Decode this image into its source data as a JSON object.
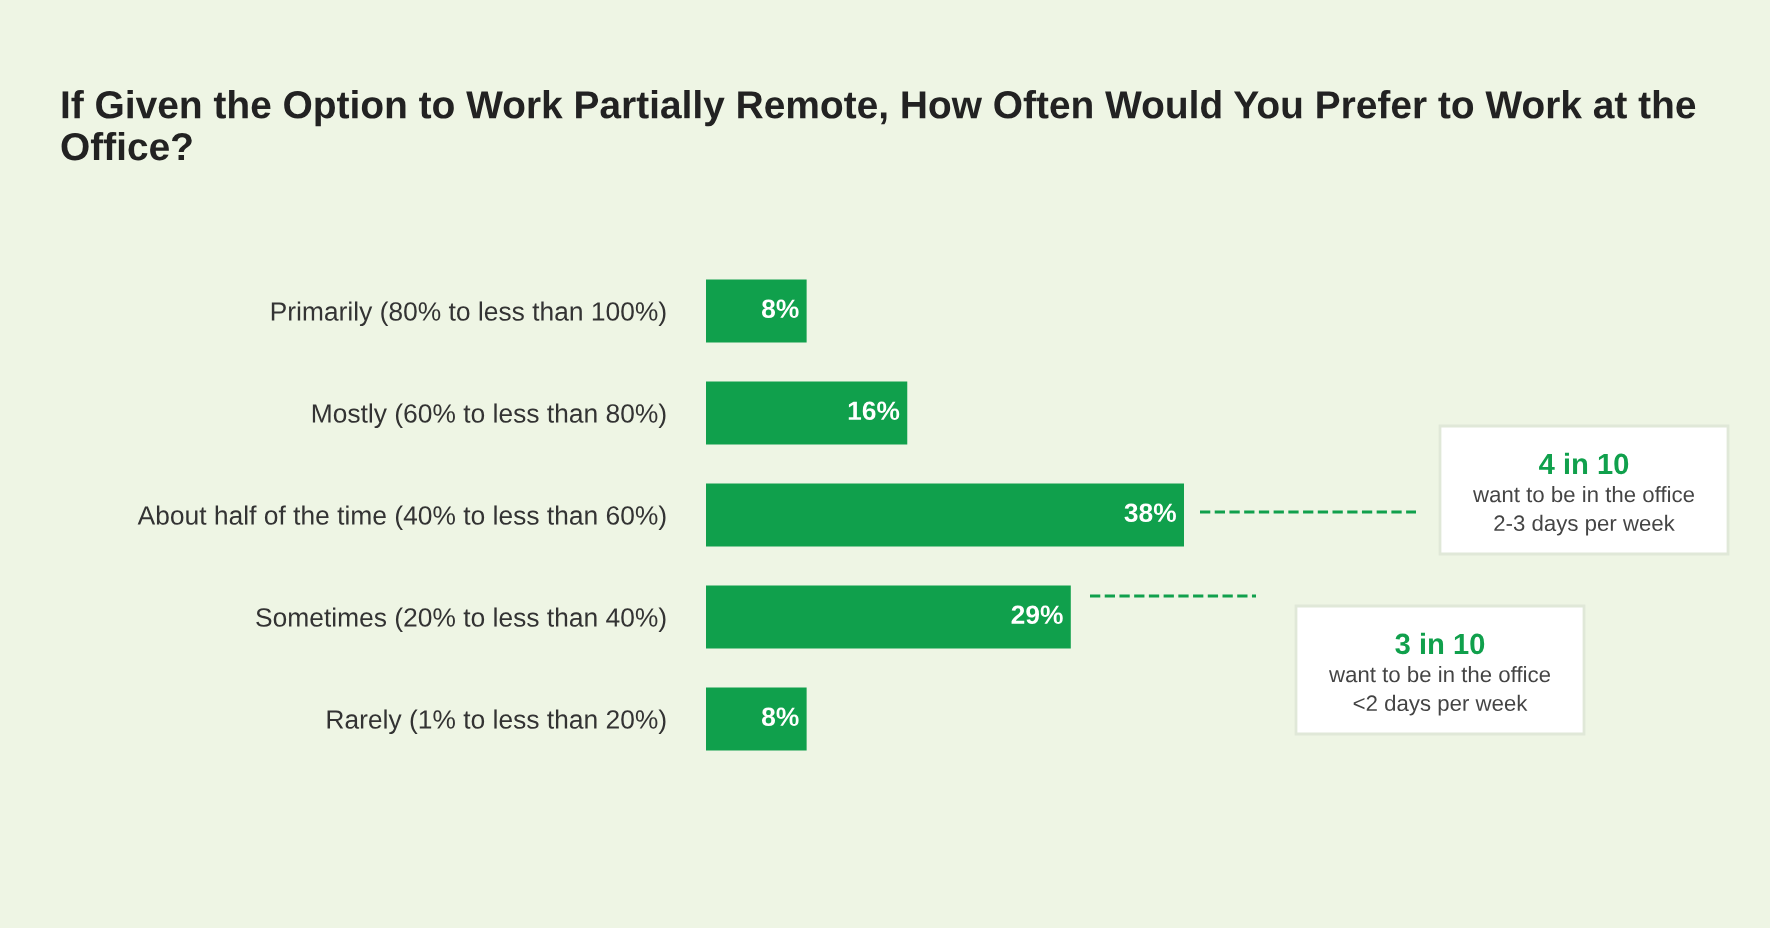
{
  "chart_data": {
    "type": "bar",
    "orientation": "horizontal",
    "title": "If Given the Option to Work Partially Remote, How Often Would You Prefer to Work at the Office?",
    "categories": [
      "Primarily (80% to less than 100%)",
      "Mostly (60% to less than 80%)",
      "About half of the time (40% to less than 60%)",
      "Sometimes (20% to less than 40%)",
      "Rarely (1% to less than 20%)"
    ],
    "values": [
      8,
      16,
      38,
      29,
      8
    ],
    "value_labels": [
      "8%",
      "16%",
      "38%",
      "29%",
      "8%"
    ],
    "color": "#10a04c",
    "annotations": [
      "4 in 10\nwant to be in the office\n2-3 days per week",
      "3 in 10\nwant to be in the office\n<2 days per week"
    ],
    "grid": false,
    "legend": false
  }
}
